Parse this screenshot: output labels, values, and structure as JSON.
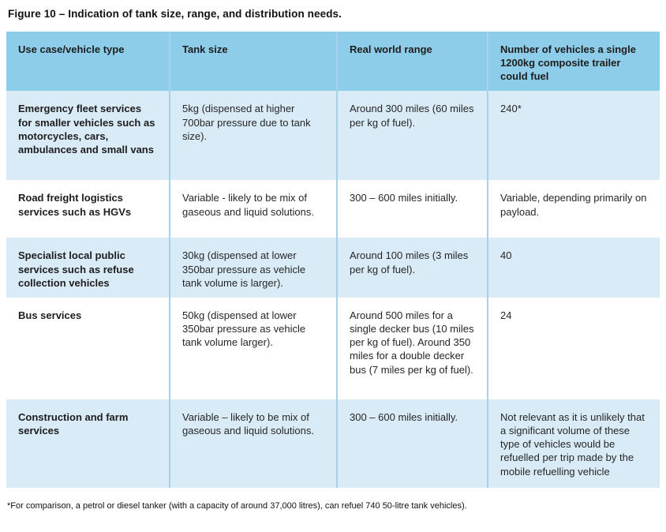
{
  "figure": {
    "title": "Figure 10 – Indication of tank size, range, and distribution needs.",
    "footnote": "*For comparison, a petrol or diesel tanker (with a capacity of around 37,000 litres), can refuel 740 50-litre tank vehicles)."
  },
  "table": {
    "columns": [
      "Use case/vehicle type",
      "Tank size",
      "Real world range",
      "Number of vehicles a single 1200kg composite trailer could fuel"
    ],
    "rows": [
      {
        "cells": [
          "Emergency fleet services for smaller vehicles such as motorcycles, cars, ambulances and small vans",
          "5kg (dispensed at higher 700bar pressure due to tank size).",
          "Around 300 miles (60 miles per kg of fuel).",
          "240*"
        ]
      },
      {
        "cells": [
          "Road freight logistics services such as HGVs",
          "Variable - likely to be mix of gaseous and liquid solutions.",
          "300 – 600 miles initially.",
          "Variable, depending primarily on payload."
        ]
      },
      {
        "cells": [
          "Specialist local public services such as refuse collection vehicles",
          "30kg (dispensed at lower 350bar pressure as vehicle tank volume is larger).",
          "Around 100 miles (3 miles per kg of fuel).",
          "40"
        ]
      },
      {
        "cells": [
          "Bus services",
          "50kg (dispensed at lower 350bar pressure as vehicle tank volume larger).",
          "Around 500 miles for a single decker bus (10 miles per kg of fuel). Around 350 miles for a double decker bus (7 miles per kg of fuel).",
          "24"
        ]
      },
      {
        "cells": [
          "Construction and farm services",
          "Variable – likely to be mix of gaseous and liquid solutions.",
          "300 – 600 miles initially.",
          "Not relevant as it is unlikely that a significant volume of these type of vehicles would be refuelled per trip made by the mobile refuelling vehicle"
        ]
      }
    ]
  },
  "colors": {
    "header_bg": "#8ecde9",
    "row_alt_bg": "#d9ebf7",
    "row_bg": "#ffffff",
    "divider": "#a3d2ea",
    "text": "#262626"
  }
}
